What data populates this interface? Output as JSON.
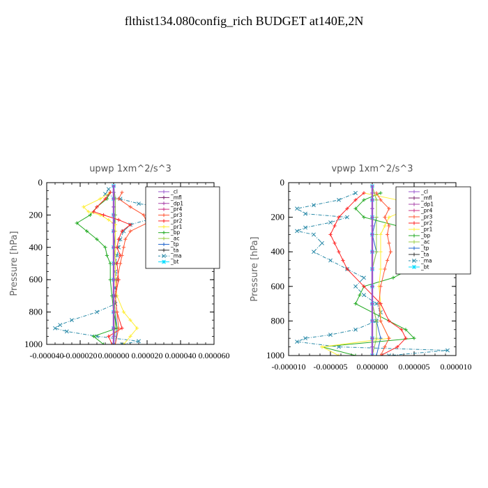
{
  "title": "flthist134.080config_rich  BUDGET at140E,2N",
  "chart_data": [
    {
      "type": "line",
      "title": "upwp   1xm^2/s^3",
      "ylabel": "Pressure [hPa]",
      "ylim": [
        1000,
        0
      ],
      "xlim": [
        -4e-05,
        6e-05
      ],
      "yticks": [
        0,
        200,
        400,
        600,
        800,
        1000
      ],
      "xtick_labels": [
        "-0.000040",
        "-0.000020",
        "0.000000",
        "0.000020",
        "0.000040",
        "0.000060"
      ],
      "legend_position": "top-right",
      "series": [
        {
          "name": "_cl",
          "color": "#9955cc",
          "marker": "+",
          "y": [
            20,
            60,
            100,
            150,
            200,
            250,
            300,
            400,
            500,
            600,
            700,
            800,
            900,
            950,
            1000
          ],
          "x": [
            0,
            0,
            0,
            0,
            0,
            0,
            0,
            0,
            0,
            0,
            0,
            0,
            0,
            0,
            0
          ]
        },
        {
          "name": "_mfl",
          "color": "#7a1f6e",
          "marker": "+",
          "y": [
            20,
            60,
            100,
            150,
            200,
            250,
            300,
            400,
            500,
            600,
            700,
            800,
            900,
            950,
            1000
          ],
          "x": [
            0,
            0,
            0,
            0,
            0,
            0,
            0,
            0,
            0,
            0,
            0,
            0,
            0,
            0,
            0
          ]
        },
        {
          "name": "_dp1",
          "color": "#aa44aa",
          "marker": "+",
          "y": [
            20,
            100,
            200,
            300,
            400,
            500,
            600,
            700,
            800,
            900,
            1000
          ],
          "x": [
            0,
            0,
            0,
            0,
            0,
            0,
            0,
            0,
            0,
            0,
            0
          ]
        },
        {
          "name": "_pr4",
          "color": "#cc3388",
          "marker": "+",
          "y": [
            20,
            100,
            200,
            300,
            400,
            500,
            600,
            700,
            800,
            900,
            1000
          ],
          "x": [
            0,
            0,
            0,
            0,
            0,
            0,
            0,
            0,
            0,
            0,
            0
          ]
        },
        {
          "name": "_pr3",
          "color": "#ff5533",
          "marker": "+",
          "y": [
            60,
            100,
            150,
            200,
            250,
            300,
            350,
            400,
            450,
            500,
            600,
            700,
            800,
            900,
            1000
          ],
          "x": [
            5e-06,
            3e-06,
            1e-05,
            1.8e-05,
            2e-05,
            1e-05,
            7e-06,
            6e-06,
            5e-06,
            4e-06,
            2e-06,
            1e-06,
            2e-06,
            3e-06,
            1e-06
          ]
        },
        {
          "name": "_pr2",
          "color": "#ff2222",
          "marker": "+",
          "y": [
            60,
            100,
            150,
            180,
            200,
            230,
            260,
            300,
            350,
            400,
            450,
            500,
            600,
            700,
            800,
            900,
            950,
            1000
          ],
          "x": [
            -2e-06,
            -5e-06,
            -1e-05,
            -1.2e-05,
            -6e-06,
            3e-06,
            1e-05,
            5e-06,
            3e-06,
            2e-06,
            4e-06,
            2e-06,
            3e-06,
            1e-06,
            2e-06,
            5e-06,
            -3e-06,
            -1e-06
          ]
        },
        {
          "name": "_pr1",
          "color": "#ffee33",
          "marker": "+",
          "y": [
            60,
            100,
            150,
            180,
            200,
            230,
            260,
            300,
            400,
            500,
            600,
            700,
            800,
            850,
            900,
            950,
            1000
          ],
          "x": [
            -2e-06,
            -8e-06,
            -1.8e-05,
            -1.5e-05,
            -8e-06,
            -3e-06,
            1e-06,
            1e-06,
            1e-06,
            1e-06,
            1e-06,
            2e-06,
            6e-06,
            1e-05,
            1.4e-05,
            1e-05,
            6e-06
          ]
        },
        {
          "name": "_bp",
          "color": "#22aa22",
          "marker": "+",
          "y": [
            60,
            100,
            150,
            200,
            250,
            300,
            350,
            400,
            450,
            500,
            600,
            700,
            800,
            900,
            950,
            1000
          ],
          "x": [
            -2e-06,
            -4e-06,
            -1e-05,
            -1.4e-05,
            -2.2e-05,
            -1.6e-05,
            -1e-05,
            -5e-06,
            -4e-06,
            -2e-06,
            -2e-06,
            -1e-06,
            0,
            2e-06,
            -1.2e-05,
            -6e-06
          ]
        },
        {
          "name": "_ac",
          "color": "#99cc44",
          "marker": "+",
          "y": [
            20,
            100,
            200,
            300,
            400,
            500,
            600,
            700,
            800,
            900,
            1000
          ],
          "x": [
            0,
            1e-06,
            1e-06,
            1e-06,
            1e-06,
            0,
            0,
            0,
            1e-06,
            1e-06,
            0
          ]
        },
        {
          "name": "_tp",
          "color": "#2266cc",
          "marker": "+",
          "y": [
            20,
            100,
            200,
            300,
            400,
            500,
            600,
            700,
            800,
            900,
            1000
          ],
          "x": [
            0,
            1e-06,
            1e-06,
            0,
            1e-06,
            0,
            0,
            0,
            1e-06,
            2e-06,
            1e-06
          ]
        },
        {
          "name": "_ta",
          "color": "#333333",
          "marker": "+",
          "y": [
            20,
            100,
            200,
            300,
            400,
            500,
            600,
            700,
            800,
            900,
            1000
          ],
          "x": [
            0,
            0,
            0,
            0,
            0,
            0,
            0,
            0,
            0,
            0,
            0
          ]
        },
        {
          "name": "_ma",
          "color": "#2a8aa8",
          "marker": "x",
          "y": [
            40,
            70,
            100,
            130,
            160,
            200,
            230,
            260,
            300,
            350,
            400,
            450,
            500,
            550,
            600,
            650,
            700,
            750,
            800,
            850,
            880,
            900,
            920,
            950,
            980,
            1000
          ],
          "x": [
            -3e-06,
            -5e-06,
            4e-06,
            1.5e-05,
            3.5e-05,
            4e-05,
            2e-05,
            1e-05,
            6e-06,
            4e-06,
            3e-06,
            2e-06,
            1e-06,
            1e-06,
            2e-06,
            1e-06,
            1e-06,
            1e-06,
            -1e-05,
            -2.5e-05,
            -3.2e-05,
            -3.5e-05,
            -2.8e-05,
            -1e-05,
            1.5e-05,
            5e-06
          ]
        },
        {
          "name": "_bt",
          "color": "#00ddff",
          "marker": "*",
          "y": [
            20,
            100,
            200,
            300,
            400,
            500,
            600,
            700,
            800,
            900,
            1000
          ],
          "x": [
            0,
            0,
            0,
            0,
            0,
            0,
            0,
            0,
            0,
            0,
            0
          ]
        }
      ]
    },
    {
      "type": "line",
      "title": "vpwp   1xm^2/s^3",
      "ylabel": "Pressure [hPa]",
      "ylim": [
        1000,
        0
      ],
      "xlim": [
        -1e-05,
        1e-05
      ],
      "yticks": [
        0,
        200,
        400,
        600,
        800,
        1000
      ],
      "xtick_labels": [
        "-0.000010",
        "-0.000005",
        "0.000000",
        "0.000005",
        "0.000010"
      ],
      "legend_position": "top-right",
      "series": [
        {
          "name": "_cl",
          "color": "#9955cc",
          "marker": "+",
          "y": [
            20,
            60,
            100,
            150,
            200,
            250,
            300,
            400,
            500,
            600,
            700,
            800,
            900,
            950,
            1000
          ],
          "x": [
            0,
            0,
            0,
            0,
            0,
            0,
            0,
            0,
            0,
            0,
            0,
            0,
            0,
            0,
            0
          ]
        },
        {
          "name": "_mfl",
          "color": "#7a1f6e",
          "marker": "+",
          "y": [
            20,
            60,
            100,
            150,
            200,
            250,
            300,
            400,
            500,
            600,
            700,
            800,
            900,
            950,
            1000
          ],
          "x": [
            0,
            0,
            0,
            0,
            0,
            0,
            0,
            0,
            0,
            0,
            0,
            0,
            0,
            0,
            0
          ]
        },
        {
          "name": "_dp1",
          "color": "#aa44aa",
          "marker": "+",
          "y": [
            20,
            100,
            200,
            300,
            400,
            500,
            600,
            700,
            800,
            900,
            1000
          ],
          "x": [
            0,
            0,
            0,
            0,
            0,
            0,
            0,
            0,
            0,
            0,
            0
          ]
        },
        {
          "name": "_pr4",
          "color": "#cc3388",
          "marker": "+",
          "y": [
            20,
            100,
            200,
            300,
            400,
            500,
            600,
            700,
            800,
            900,
            1000
          ],
          "x": [
            0,
            0,
            0,
            0,
            0,
            0,
            0,
            0,
            0,
            0,
            0
          ]
        },
        {
          "name": "_pr3",
          "color": "#ff5533",
          "marker": "+",
          "y": [
            60,
            100,
            150,
            200,
            250,
            300,
            350,
            400,
            450,
            500,
            600,
            700,
            800,
            900,
            950,
            1000
          ],
          "x": [
            5e-07,
            1e-06,
            2e-06,
            1.5e-06,
            2e-06,
            1.8e-06,
            2e-06,
            2.2e-06,
            1.8e-06,
            1.5e-06,
            1e-06,
            8e-07,
            1e-06,
            2e-06,
            1.5e-06,
            1e-06
          ]
        },
        {
          "name": "_pr2",
          "color": "#ff2222",
          "marker": "+",
          "y": [
            60,
            100,
            150,
            200,
            250,
            300,
            350,
            400,
            450,
            500,
            600,
            700,
            800,
            850,
            900,
            950,
            1000
          ],
          "x": [
            -1e-06,
            -2e-06,
            -3e-06,
            -4e-06,
            -4.5e-06,
            -5e-06,
            -4.5e-06,
            -4e-06,
            -3.5e-06,
            -3e-06,
            -1e-06,
            1e-06,
            2e-06,
            3.5e-06,
            4e-06,
            3e-06,
            1e-06
          ]
        },
        {
          "name": "_pr1",
          "color": "#ffee33",
          "marker": "+",
          "y": [
            60,
            100,
            150,
            200,
            250,
            300,
            400,
            500,
            600,
            700,
            800,
            900,
            950,
            1000
          ],
          "x": [
            -1e-06,
            3e-06,
            4.5e-06,
            2e-06,
            1.5e-06,
            1e-06,
            1e-06,
            1e-06,
            8e-07,
            1e-06,
            1e-06,
            2e-06,
            -6e-06,
            -4e-06
          ]
        },
        {
          "name": "_bp",
          "color": "#22aa22",
          "marker": "+",
          "y": [
            60,
            100,
            150,
            200,
            250,
            300,
            350,
            400,
            450,
            500,
            550,
            600,
            650,
            700,
            800,
            850,
            900,
            950,
            1000
          ],
          "x": [
            1e-06,
            -1e-06,
            -2e-06,
            -1e-06,
            3e-06,
            8e-06,
            9e-06,
            7e-06,
            5e-06,
            4.5e-06,
            2.5e-06,
            -1e-06,
            -1.5e-06,
            -2e-06,
            2e-06,
            4e-06,
            5e-06,
            -6e-06,
            -2e-06
          ]
        },
        {
          "name": "_ac",
          "color": "#99cc44",
          "marker": "+",
          "y": [
            20,
            100,
            200,
            300,
            400,
            500,
            600,
            700,
            800,
            900,
            1000
          ],
          "x": [
            0,
            5e-07,
            5e-07,
            5e-07,
            5e-07,
            0,
            0,
            0,
            5e-07,
            5e-07,
            0
          ]
        },
        {
          "name": "_tp",
          "color": "#2266cc",
          "marker": "+",
          "y": [
            20,
            100,
            200,
            300,
            400,
            500,
            600,
            700,
            800,
            900,
            1000
          ],
          "x": [
            0,
            5e-07,
            5e-07,
            0,
            5e-07,
            0,
            0,
            0,
            5e-07,
            1e-06,
            5e-07
          ]
        },
        {
          "name": "_ta",
          "color": "#333333",
          "marker": "+",
          "y": [
            20,
            100,
            200,
            300,
            400,
            500,
            600,
            700,
            800,
            900,
            1000
          ],
          "x": [
            0,
            0,
            0,
            0,
            0,
            0,
            0,
            0,
            0,
            0,
            0
          ]
        },
        {
          "name": "_ma",
          "color": "#2a8aa8",
          "marker": "x",
          "y": [
            60,
            100,
            130,
            150,
            180,
            200,
            230,
            260,
            280,
            300,
            350,
            400,
            450,
            500,
            550,
            600,
            650,
            700,
            750,
            800,
            850,
            880,
            900,
            920,
            950,
            970,
            1000
          ],
          "x": [
            -2e-06,
            -4e-06,
            -7e-06,
            -9e-06,
            -8e-06,
            -3e-06,
            -5e-06,
            -8e-06,
            -9e-06,
            -7e-06,
            -6e-06,
            -7e-06,
            -5e-06,
            -3e-06,
            -1e-06,
            -2e-06,
            -1e-06,
            5e-07,
            1e-06,
            5e-07,
            -2e-06,
            -5e-06,
            -8e-06,
            -9e-06,
            -4e-06,
            9e-06,
            2e-06
          ]
        },
        {
          "name": "_bt",
          "color": "#00ddff",
          "marker": "*",
          "y": [
            20,
            100,
            200,
            300,
            400,
            500,
            600,
            700,
            800,
            900,
            1000
          ],
          "x": [
            0,
            0,
            0,
            0,
            0,
            0,
            0,
            0,
            0,
            0,
            0
          ]
        }
      ]
    }
  ]
}
